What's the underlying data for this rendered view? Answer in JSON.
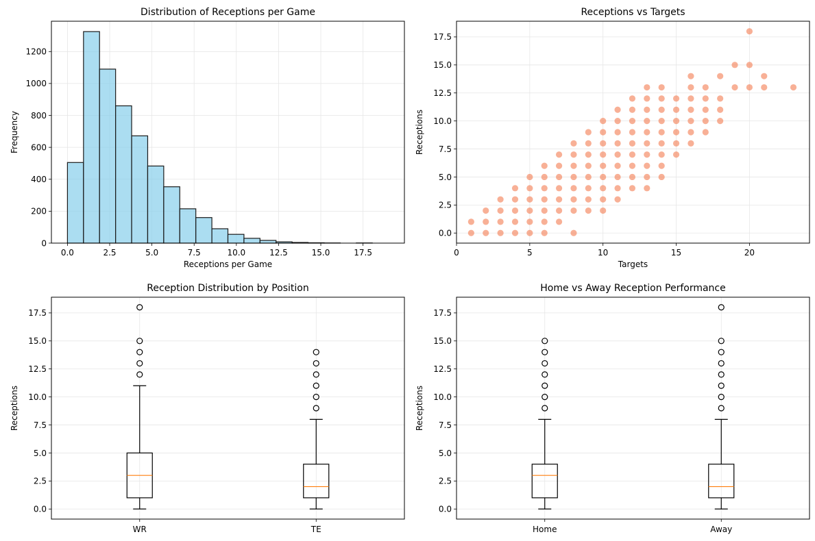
{
  "chart_data": [
    {
      "type": "bar",
      "id": "hist",
      "title": "Distribution of Receptions per Game",
      "xlabel": "Receptions per Game",
      "ylabel": "Frequency",
      "xlim": [
        -0.95,
        19.95
      ],
      "ylim": [
        0,
        1390
      ],
      "xticks": [
        0,
        2.5,
        5,
        7.5,
        10,
        12.5,
        15,
        17.5
      ],
      "xtick_labels": [
        "0.0",
        "2.5",
        "5.0",
        "7.5",
        "10.0",
        "12.5",
        "15.0",
        "17.5"
      ],
      "yticks": [
        0,
        200,
        400,
        600,
        800,
        1000,
        1200
      ],
      "ytick_labels": [
        "0",
        "200",
        "400",
        "600",
        "800",
        "1000",
        "1200"
      ],
      "bin_start": 0,
      "bin_width": 0.95,
      "values": [
        505,
        1325,
        1090,
        860,
        672,
        483,
        353,
        215,
        160,
        90,
        55,
        30,
        17,
        8,
        4,
        2,
        1,
        0,
        1,
        0
      ],
      "color": "#87ceeb",
      "edge_color": "#1a1a1a",
      "grid": true
    },
    {
      "type": "scatter",
      "id": "scatter",
      "title": "Receptions vs Targets",
      "xlabel": "Targets",
      "ylabel": "Receptions",
      "xlim": [
        0,
        24.1
      ],
      "ylim": [
        -0.9,
        18.9
      ],
      "xticks": [
        0,
        5,
        10,
        15,
        20
      ],
      "xtick_labels": [
        "0",
        "5",
        "10",
        "15",
        "20"
      ],
      "yticks": [
        0,
        2.5,
        5,
        7.5,
        10,
        12.5,
        15,
        17.5
      ],
      "ytick_labels": [
        "0.0",
        "2.5",
        "5.0",
        "7.5",
        "10.0",
        "12.5",
        "15.0",
        "17.5"
      ],
      "color": "#f47c50",
      "points": [
        [
          1,
          0
        ],
        [
          1,
          1
        ],
        [
          2,
          0
        ],
        [
          2,
          1
        ],
        [
          2,
          2
        ],
        [
          3,
          0
        ],
        [
          3,
          1
        ],
        [
          3,
          2
        ],
        [
          3,
          3
        ],
        [
          4,
          0
        ],
        [
          4,
          1
        ],
        [
          4,
          2
        ],
        [
          4,
          3
        ],
        [
          4,
          4
        ],
        [
          5,
          0
        ],
        [
          5,
          1
        ],
        [
          5,
          2
        ],
        [
          5,
          3
        ],
        [
          5,
          4
        ],
        [
          5,
          5
        ],
        [
          6,
          0
        ],
        [
          6,
          1
        ],
        [
          6,
          2
        ],
        [
          6,
          3
        ],
        [
          6,
          4
        ],
        [
          6,
          5
        ],
        [
          6,
          6
        ],
        [
          7,
          1
        ],
        [
          7,
          2
        ],
        [
          7,
          3
        ],
        [
          7,
          4
        ],
        [
          7,
          5
        ],
        [
          7,
          6
        ],
        [
          7,
          7
        ],
        [
          8,
          0
        ],
        [
          8,
          2
        ],
        [
          8,
          3
        ],
        [
          8,
          4
        ],
        [
          8,
          5
        ],
        [
          8,
          6
        ],
        [
          8,
          7
        ],
        [
          8,
          8
        ],
        [
          9,
          2
        ],
        [
          9,
          3
        ],
        [
          9,
          4
        ],
        [
          9,
          5
        ],
        [
          9,
          6
        ],
        [
          9,
          7
        ],
        [
          9,
          8
        ],
        [
          9,
          9
        ],
        [
          10,
          2
        ],
        [
          10,
          3
        ],
        [
          10,
          4
        ],
        [
          10,
          5
        ],
        [
          10,
          6
        ],
        [
          10,
          7
        ],
        [
          10,
          8
        ],
        [
          10,
          9
        ],
        [
          10,
          10
        ],
        [
          11,
          3
        ],
        [
          11,
          4
        ],
        [
          11,
          5
        ],
        [
          11,
          6
        ],
        [
          11,
          7
        ],
        [
          11,
          8
        ],
        [
          11,
          9
        ],
        [
          11,
          10
        ],
        [
          11,
          11
        ],
        [
          12,
          4
        ],
        [
          12,
          5
        ],
        [
          12,
          6
        ],
        [
          12,
          7
        ],
        [
          12,
          8
        ],
        [
          12,
          9
        ],
        [
          12,
          10
        ],
        [
          12,
          11
        ],
        [
          12,
          12
        ],
        [
          13,
          4
        ],
        [
          13,
          5
        ],
        [
          13,
          6
        ],
        [
          13,
          7
        ],
        [
          13,
          8
        ],
        [
          13,
          9
        ],
        [
          13,
          10
        ],
        [
          13,
          11
        ],
        [
          13,
          12
        ],
        [
          13,
          13
        ],
        [
          14,
          5
        ],
        [
          14,
          6
        ],
        [
          14,
          7
        ],
        [
          14,
          8
        ],
        [
          14,
          9
        ],
        [
          14,
          10
        ],
        [
          14,
          11
        ],
        [
          14,
          12
        ],
        [
          14,
          13
        ],
        [
          15,
          7
        ],
        [
          15,
          8
        ],
        [
          15,
          9
        ],
        [
          15,
          10
        ],
        [
          15,
          11
        ],
        [
          15,
          12
        ],
        [
          16,
          8
        ],
        [
          16,
          9
        ],
        [
          16,
          10
        ],
        [
          16,
          11
        ],
        [
          16,
          12
        ],
        [
          16,
          13
        ],
        [
          16,
          14
        ],
        [
          17,
          9
        ],
        [
          17,
          10
        ],
        [
          17,
          11
        ],
        [
          17,
          12
        ],
        [
          17,
          13
        ],
        [
          18,
          10
        ],
        [
          18,
          11
        ],
        [
          18,
          12
        ],
        [
          18,
          14
        ],
        [
          19,
          13
        ],
        [
          19,
          15
        ],
        [
          20,
          13
        ],
        [
          20,
          15
        ],
        [
          20,
          18
        ],
        [
          21,
          13
        ],
        [
          21,
          14
        ],
        [
          23,
          13
        ]
      ],
      "grid": true
    },
    {
      "type": "box",
      "id": "box-pos",
      "title": "Reception Distribution by Position",
      "ylabel": "Receptions",
      "ylim": [
        -0.9,
        18.9
      ],
      "yticks": [
        0,
        2.5,
        5,
        7.5,
        10,
        12.5,
        15,
        17.5
      ],
      "ytick_labels": [
        "0.0",
        "2.5",
        "5.0",
        "7.5",
        "10.0",
        "12.5",
        "15.0",
        "17.5"
      ],
      "categories": [
        "WR",
        "TE"
      ],
      "boxes": [
        {
          "q1": 1,
          "median": 3,
          "q3": 5,
          "whisker_low": 0,
          "whisker_high": 11,
          "outliers": [
            12,
            13,
            14,
            15,
            18
          ]
        },
        {
          "q1": 1,
          "median": 2,
          "q3": 4,
          "whisker_low": 0,
          "whisker_high": 8,
          "outliers": [
            9,
            10,
            11,
            12,
            13,
            14
          ]
        }
      ],
      "median_color": "#ff7f0e",
      "grid": true
    },
    {
      "type": "box",
      "id": "box-ha",
      "title": "Home vs Away Reception Performance",
      "ylabel": "Receptions",
      "ylim": [
        -0.9,
        18.9
      ],
      "yticks": [
        0,
        2.5,
        5,
        7.5,
        10,
        12.5,
        15,
        17.5
      ],
      "ytick_labels": [
        "0.0",
        "2.5",
        "5.0",
        "7.5",
        "10.0",
        "12.5",
        "15.0",
        "17.5"
      ],
      "categories": [
        "Home",
        "Away"
      ],
      "boxes": [
        {
          "q1": 1,
          "median": 3,
          "q3": 4,
          "whisker_low": 0,
          "whisker_high": 8,
          "outliers": [
            9,
            10,
            11,
            12,
            13,
            14,
            15
          ]
        },
        {
          "q1": 1,
          "median": 2,
          "q3": 4,
          "whisker_low": 0,
          "whisker_high": 8,
          "outliers": [
            9,
            10,
            11,
            12,
            13,
            14,
            15,
            18
          ]
        }
      ],
      "median_color": "#ff7f0e",
      "grid": true
    }
  ]
}
